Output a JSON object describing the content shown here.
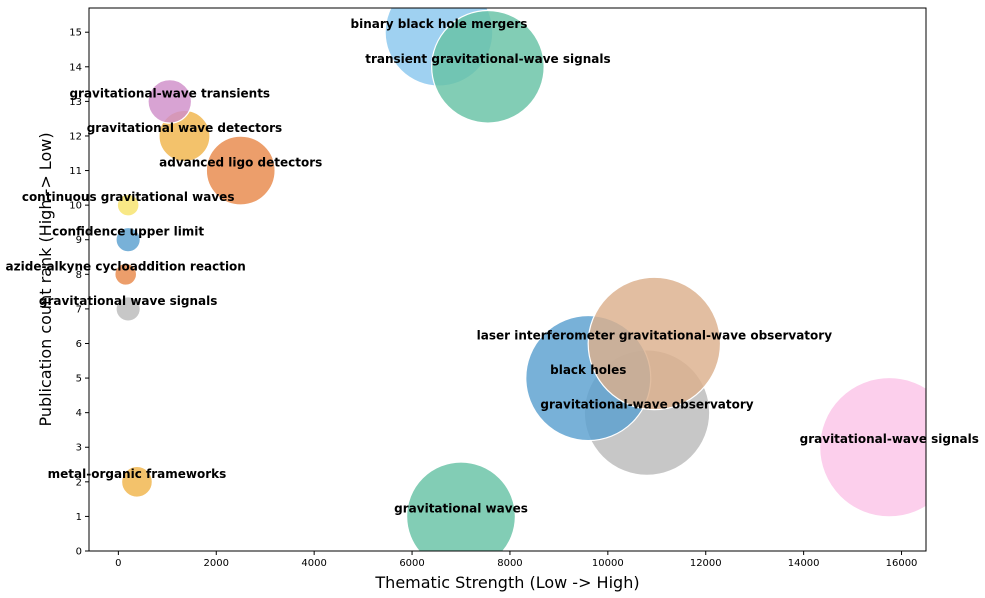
{
  "chart_data": {
    "type": "scatter",
    "subtype": "bubble",
    "title": "",
    "xlabel": "Thematic Strength (Low -> High)",
    "ylabel": "Publication count rank (High -> Low)",
    "xlim": [
      -600,
      16500
    ],
    "ylim": [
      0,
      15.7
    ],
    "xticks": [
      0,
      2000,
      4000,
      6000,
      8000,
      10000,
      12000,
      14000,
      16000
    ],
    "yticks": [
      0,
      1,
      2,
      3,
      4,
      5,
      6,
      7,
      8,
      9,
      10,
      11,
      12,
      13,
      14,
      15
    ],
    "grid": false,
    "legend": "none",
    "points": [
      {
        "label": "gravitational waves",
        "x": 7000,
        "y": 1,
        "size": 1000,
        "color": "#66c2a5"
      },
      {
        "label": "metal-organic frameworks",
        "x": 380,
        "y": 2,
        "size": 80,
        "color": "#f0b44b"
      },
      {
        "label": "gravitational-wave signals",
        "x": 15750,
        "y": 3,
        "size": 1640,
        "color": "#fbc5e8"
      },
      {
        "label": "gravitational-wave observatory",
        "x": 10800,
        "y": 4,
        "size": 1330,
        "color": "#bbbbbb"
      },
      {
        "label": "black holes",
        "x": 9600,
        "y": 5,
        "size": 1320,
        "color": "#5aa0d0"
      },
      {
        "label": "laser interferometer gravitational-wave observatory",
        "x": 10950,
        "y": 6,
        "size": 1480,
        "color": "#dcb08c"
      },
      {
        "label": "gravitational wave signals",
        "x": 200,
        "y": 7,
        "size": 50,
        "color": "#bbbbbb"
      },
      {
        "label": "azide-alkyne cycloaddition reaction",
        "x": 150,
        "y": 8,
        "size": 40,
        "color": "#e8894b"
      },
      {
        "label": "confidence upper limit",
        "x": 200,
        "y": 9,
        "size": 50,
        "color": "#5aa0d0"
      },
      {
        "label": "continuous gravitational waves",
        "x": 200,
        "y": 10,
        "size": 40,
        "color": "#f7e36b"
      },
      {
        "label": "advanced ligo detectors",
        "x": 2500,
        "y": 11,
        "size": 400,
        "color": "#e8894b"
      },
      {
        "label": "gravitational wave detectors",
        "x": 1350,
        "y": 12,
        "size": 220,
        "color": "#f0b44b"
      },
      {
        "label": "gravitational-wave transients",
        "x": 1050,
        "y": 13,
        "size": 160,
        "color": "#cf8fc9"
      },
      {
        "label": "binary black hole mergers",
        "x": 6550,
        "y": 15,
        "size": 980,
        "color": "#8ac7ee"
      },
      {
        "label": "transient gravitational-wave signals",
        "x": 7550,
        "y": 14,
        "size": 1070,
        "color": "#66c2a5"
      }
    ]
  }
}
